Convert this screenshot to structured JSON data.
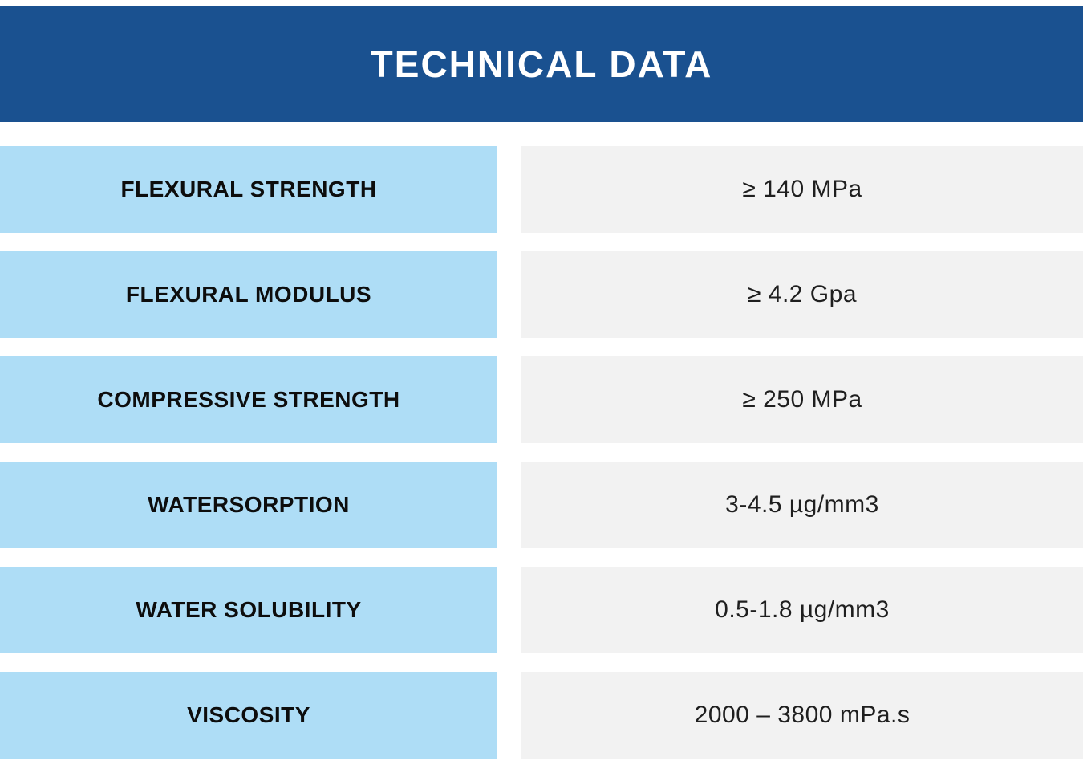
{
  "header": {
    "title": "TECHNICAL DATA"
  },
  "colors": {
    "header_bg": "#1A5190",
    "header_text": "#FFFFFF",
    "label_bg": "#AEDDF6",
    "label_text": "#0D0D0D",
    "value_bg": "#F2F2F2",
    "value_text": "#1F1F1F",
    "page_bg": "#FFFFFF"
  },
  "table": {
    "rows": [
      {
        "label": "FLEXURAL STRENGTH",
        "value": "≥ 140 MPa"
      },
      {
        "label": "FLEXURAL MODULUS",
        "value": "≥ 4.2 Gpa"
      },
      {
        "label": "COMPRESSIVE STRENGTH",
        "value": "≥ 250 MPa"
      },
      {
        "label": "WATERSORPTION",
        "value": "3-4.5 µg/mm3"
      },
      {
        "label": "WATER SOLUBILITY",
        "value": "0.5-1.8 µg/mm3"
      },
      {
        "label": "VISCOSITY",
        "value": "2000 – 3800 mPa.s"
      }
    ]
  }
}
